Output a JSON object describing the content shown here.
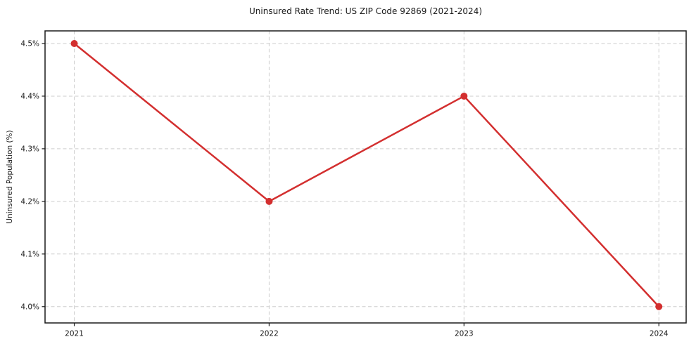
{
  "chart_data": {
    "type": "line",
    "title": "Uninsured Rate Trend: US ZIP Code 92869 (2021-2024)",
    "xlabel": "",
    "ylabel": "Uninsured Population (%)",
    "x": [
      2021,
      2022,
      2023,
      2024
    ],
    "x_tick_labels": [
      "2021",
      "2022",
      "2023",
      "2024"
    ],
    "series": [
      {
        "name": "Uninsured rate",
        "values": [
          4.5,
          4.2,
          4.4,
          4.0
        ]
      }
    ],
    "y_tick_values": [
      4.0,
      4.1,
      4.2,
      4.3,
      4.4,
      4.5
    ],
    "y_tick_labels": [
      "4.0%",
      "4.1%",
      "4.2%",
      "4.3%",
      "4.4%",
      "4.5%"
    ],
    "xlim": [
      2020.85,
      2024.14
    ],
    "ylim": [
      3.969,
      4.524
    ],
    "grid": true,
    "grid_style": "dashed",
    "legend_position": "none",
    "colors": {
      "line": "#d32f2f",
      "marker": "#d32f2f",
      "grid": "#cdcdcd",
      "axis": "#1a1a1a",
      "text": "#1a1a1a",
      "background": "#ffffff"
    }
  }
}
